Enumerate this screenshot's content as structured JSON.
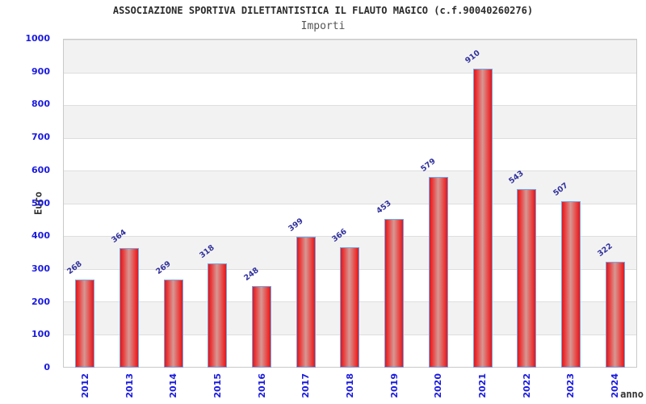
{
  "title": "ASSOCIAZIONE SPORTIVA DILETTANTISTICA IL FLAUTO MAGICO (c.f.90040260276)",
  "subtitle": "Importi",
  "chart_data": {
    "type": "bar",
    "categories": [
      "2012",
      "2013",
      "2014",
      "2015",
      "2016",
      "2017",
      "2018",
      "2019",
      "2020",
      "2021",
      "2022",
      "2023",
      "2024"
    ],
    "values": [
      268,
      364,
      269,
      318,
      248,
      399,
      366,
      453,
      579,
      910,
      543,
      507,
      322
    ],
    "title": "ASSOCIAZIONE SPORTIVA DILETTANTISTICA IL FLAUTO MAGICO (c.f.90040260276)",
    "subtitle": "Importi",
    "xlabel": "anno",
    "ylabel": "Euro",
    "ylim": [
      0,
      1000
    ],
    "ytick_step": 100,
    "grid": "horizontal-bands",
    "legend": "none",
    "value_labels_rotated": true
  },
  "colors": {
    "bar_edge": "#e2161c",
    "bar_center": "#d69894",
    "bar_border": "#6fa8e8",
    "tick_label_blue": "#1a1ae0",
    "value_label_navy": "#31319c",
    "band_gray": "#f2f2f2",
    "band_white": "#ffffff",
    "gridline": "#dedede",
    "axis_text": "#333333"
  }
}
